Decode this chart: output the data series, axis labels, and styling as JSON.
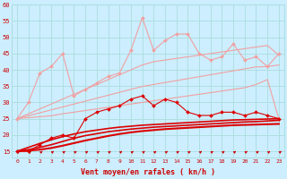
{
  "x": [
    0,
    1,
    2,
    3,
    4,
    5,
    6,
    7,
    8,
    9,
    10,
    11,
    12,
    13,
    14,
    15,
    16,
    17,
    18,
    19,
    20,
    21,
    22,
    23
  ],
  "series": [
    {
      "name": "light_pink_markers_high",
      "color": "#f0a0a0",
      "linewidth": 0.8,
      "marker": "D",
      "markersize": 2.0,
      "y": [
        25,
        30,
        39,
        41,
        45,
        32,
        34,
        36,
        38,
        39,
        46,
        56,
        46,
        49,
        51,
        51,
        45,
        43,
        44,
        48,
        43,
        44,
        41,
        45
      ]
    },
    {
      "name": "light_pink_straight_top",
      "color": "#f0a0a0",
      "linewidth": 0.8,
      "marker": null,
      "y": [
        25,
        26.5,
        28.0,
        29.5,
        31.0,
        32.5,
        34.0,
        35.5,
        37.0,
        38.5,
        40.0,
        41.5,
        42.5,
        43.0,
        43.5,
        44.0,
        44.5,
        45.0,
        45.5,
        46.0,
        46.5,
        47.0,
        47.5,
        44.5
      ]
    },
    {
      "name": "light_pink_straight_mid",
      "color": "#f0a0a0",
      "linewidth": 0.8,
      "marker": null,
      "y": [
        25,
        25.9,
        26.8,
        27.7,
        28.6,
        29.5,
        30.4,
        31.3,
        32.2,
        33.1,
        34.0,
        34.9,
        35.5,
        36.1,
        36.7,
        37.3,
        37.9,
        38.5,
        39.1,
        39.7,
        40.3,
        40.9,
        41.0,
        41.5
      ]
    },
    {
      "name": "light_pink_straight_low",
      "color": "#f0a0a0",
      "linewidth": 0.8,
      "marker": null,
      "y": [
        25,
        25.3,
        25.6,
        25.9,
        26.5,
        27.0,
        27.5,
        28.0,
        28.5,
        29.0,
        29.5,
        30.0,
        30.5,
        31.0,
        31.5,
        32.0,
        32.5,
        33.0,
        33.5,
        34.0,
        34.5,
        35.5,
        37.0,
        25.0
      ]
    },
    {
      "name": "red_markers",
      "color": "#dd0000",
      "linewidth": 0.8,
      "marker": "D",
      "markersize": 2.0,
      "y": [
        15,
        15,
        17,
        19,
        20,
        19,
        25,
        27,
        28,
        29,
        31,
        32,
        29,
        31,
        30,
        27,
        26,
        26,
        27,
        27,
        26,
        27,
        26,
        25
      ]
    },
    {
      "name": "red_straight1",
      "color": "#dd0000",
      "linewidth": 1.2,
      "marker": null,
      "y": [
        15,
        16.2,
        17.4,
        18.5,
        19.5,
        20.3,
        21.0,
        21.5,
        22.0,
        22.4,
        22.7,
        23.0,
        23.2,
        23.4,
        23.6,
        23.8,
        24.0,
        24.2,
        24.4,
        24.6,
        24.7,
        24.8,
        24.9,
        25.0
      ]
    },
    {
      "name": "red_straight2",
      "color": "#dd0000",
      "linewidth": 1.2,
      "marker": null,
      "y": [
        15,
        15.5,
        16.2,
        17.0,
        18.0,
        19.0,
        19.8,
        20.4,
        21.0,
        21.4,
        21.8,
        22.1,
        22.4,
        22.6,
        22.8,
        23.0,
        23.2,
        23.4,
        23.6,
        23.8,
        24.0,
        24.1,
        24.3,
        24.5
      ]
    },
    {
      "name": "red_straight3",
      "color": "#dd0000",
      "linewidth": 1.5,
      "marker": null,
      "y": [
        15,
        15.2,
        15.5,
        16.0,
        16.7,
        17.5,
        18.3,
        19.0,
        19.7,
        20.3,
        20.8,
        21.2,
        21.5,
        21.8,
        22.0,
        22.2,
        22.4,
        22.6,
        22.8,
        23.0,
        23.1,
        23.2,
        23.3,
        23.4
      ]
    }
  ],
  "xlabel": "Vent moyen/en rafales ( kn/h )",
  "ylim": [
    13,
    60
  ],
  "xlim": [
    -0.5,
    23.5
  ],
  "yticks": [
    15,
    20,
    25,
    30,
    35,
    40,
    45,
    50,
    55,
    60
  ],
  "xticks": [
    0,
    1,
    2,
    3,
    4,
    5,
    6,
    7,
    8,
    9,
    10,
    11,
    12,
    13,
    14,
    15,
    16,
    17,
    18,
    19,
    20,
    21,
    22,
    23
  ],
  "bg_color": "#cceeff",
  "grid_color": "#aadddd",
  "label_color": "#cc0000",
  "arrow_color": "#cc0000"
}
